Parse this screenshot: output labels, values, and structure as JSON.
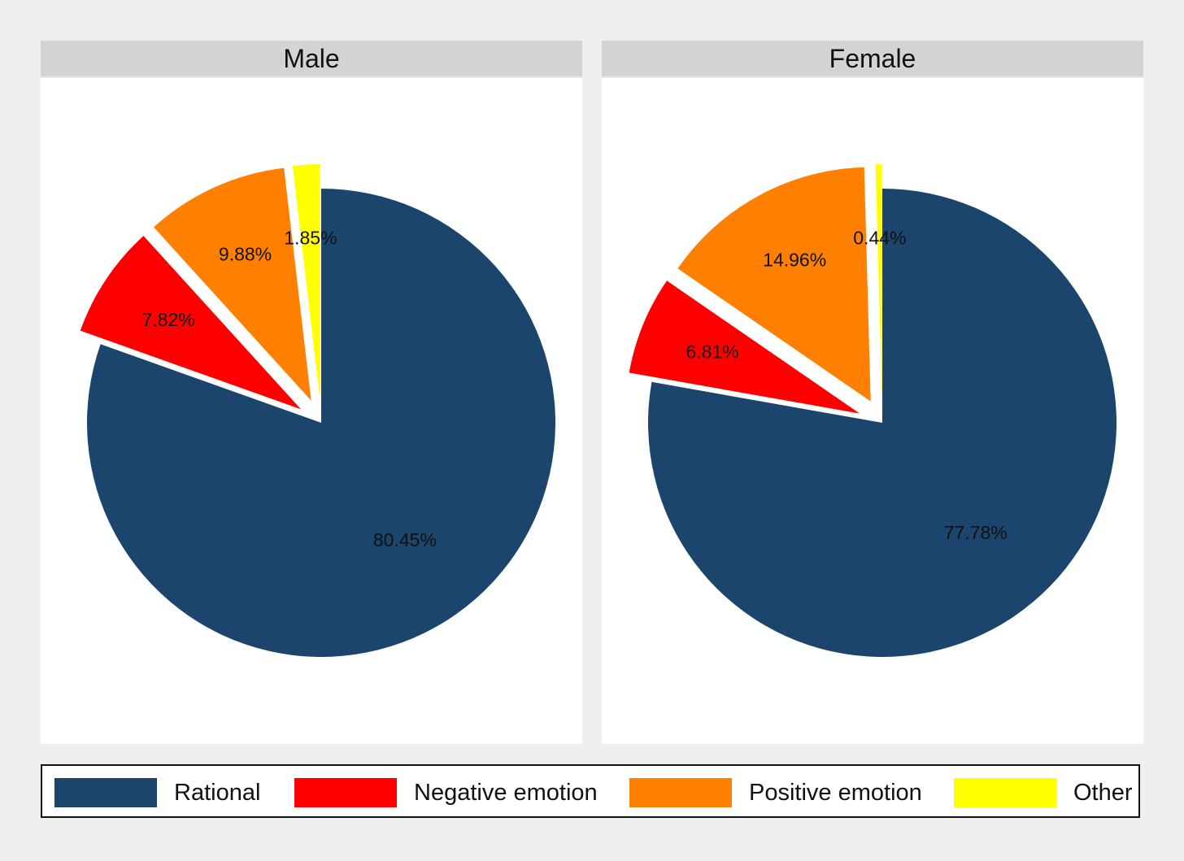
{
  "chart_data": [
    {
      "type": "pie",
      "title": "Male",
      "categories": [
        "Rational",
        "Negative emotion",
        "Positive emotion",
        "Other"
      ],
      "values": [
        80.45,
        7.82,
        9.88,
        1.85
      ],
      "labels": [
        "80.45%",
        "7.82%",
        "9.88%",
        "1.85%"
      ],
      "exploded": [
        false,
        true,
        true,
        true
      ],
      "colors": [
        "#1b456d",
        "#ff0000",
        "#ff8000",
        "#ffff00"
      ]
    },
    {
      "type": "pie",
      "title": "Female",
      "categories": [
        "Rational",
        "Negative emotion",
        "Positive emotion",
        "Other"
      ],
      "values": [
        77.78,
        6.81,
        14.96,
        0.44
      ],
      "labels": [
        "77.78%",
        "6.81%",
        "14.96%",
        "0.44%"
      ],
      "exploded": [
        false,
        true,
        true,
        true
      ],
      "colors": [
        "#1b456d",
        "#ff0000",
        "#ff8000",
        "#ffff00"
      ]
    }
  ],
  "legend": {
    "placement": "bottom",
    "items": [
      {
        "label": "Rational",
        "color": "#1b456d"
      },
      {
        "label": "Negative emotion",
        "color": "#ff0000"
      },
      {
        "label": "Positive emotion",
        "color": "#ff8000"
      },
      {
        "label": "Other",
        "color": "#ffff00"
      }
    ]
  }
}
